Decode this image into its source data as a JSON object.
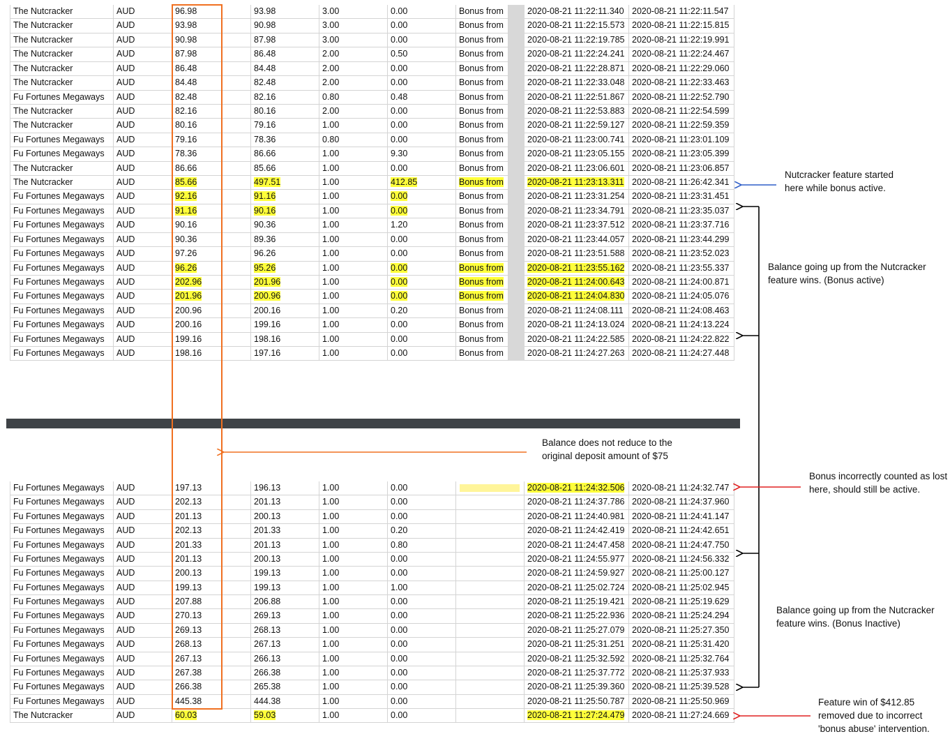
{
  "top_table": {
    "rows": [
      [
        "The Nutcracker",
        "AUD",
        "96.98",
        "93.98",
        "3.00",
        "0.00",
        "Bonus from",
        "2020-08-21 11:22:11.340",
        "2020-08-21 11:22:11.547"
      ],
      [
        "The Nutcracker",
        "AUD",
        "93.98",
        "90.98",
        "3.00",
        "0.00",
        "Bonus from",
        "2020-08-21 11:22:15.573",
        "2020-08-21 11:22:15.815"
      ],
      [
        "The Nutcracker",
        "AUD",
        "90.98",
        "87.98",
        "3.00",
        "0.00",
        "Bonus from",
        "2020-08-21 11:22:19.785",
        "2020-08-21 11:22:19.991"
      ],
      [
        "The Nutcracker",
        "AUD",
        "87.98",
        "86.48",
        "2.00",
        "0.50",
        "Bonus from",
        "2020-08-21 11:22:24.241",
        "2020-08-21 11:22:24.467"
      ],
      [
        "The Nutcracker",
        "AUD",
        "86.48",
        "84.48",
        "2.00",
        "0.00",
        "Bonus from",
        "2020-08-21 11:22:28.871",
        "2020-08-21 11:22:29.060"
      ],
      [
        "The Nutcracker",
        "AUD",
        "84.48",
        "82.48",
        "2.00",
        "0.00",
        "Bonus from",
        "2020-08-21 11:22:33.048",
        "2020-08-21 11:22:33.463"
      ],
      [
        "Fu Fortunes Megaways",
        "AUD",
        "82.48",
        "82.16",
        "0.80",
        "0.48",
        "Bonus from",
        "2020-08-21 11:22:51.867",
        "2020-08-21 11:22:52.790"
      ],
      [
        "The Nutcracker",
        "AUD",
        "82.16",
        "80.16",
        "2.00",
        "0.00",
        "Bonus from",
        "2020-08-21 11:22:53.883",
        "2020-08-21 11:22:54.599"
      ],
      [
        "The Nutcracker",
        "AUD",
        "80.16",
        "79.16",
        "1.00",
        "0.00",
        "Bonus from",
        "2020-08-21 11:22:59.127",
        "2020-08-21 11:22:59.359"
      ],
      [
        "Fu Fortunes Megaways",
        "AUD",
        "79.16",
        "78.36",
        "0.80",
        "0.00",
        "Bonus from",
        "2020-08-21 11:23:00.741",
        "2020-08-21 11:23:01.109"
      ],
      [
        "Fu Fortunes Megaways",
        "AUD",
        "78.36",
        "86.66",
        "1.00",
        "9.30",
        "Bonus from",
        "2020-08-21 11:23:05.155",
        "2020-08-21 11:23:05.399"
      ],
      [
        "The Nutcracker",
        "AUD",
        "86.66",
        "85.66",
        "1.00",
        "0.00",
        "Bonus from",
        "2020-08-21 11:23:06.601",
        "2020-08-21 11:23:06.857"
      ],
      [
        "The Nutcracker",
        "AUD",
        "85.66",
        "497.51",
        "1.00",
        "412.85",
        "Bonus from",
        "2020-08-21 11:23:13.311",
        "2020-08-21 11:26:42.341"
      ],
      [
        "Fu Fortunes Megaways",
        "AUD",
        "92.16",
        "91.16",
        "1.00",
        "0.00",
        "Bonus from",
        "2020-08-21 11:23:31.254",
        "2020-08-21 11:23:31.451"
      ],
      [
        "Fu Fortunes Megaways",
        "AUD",
        "91.16",
        "90.16",
        "1.00",
        "0.00",
        "Bonus from",
        "2020-08-21 11:23:34.791",
        "2020-08-21 11:23:35.037"
      ],
      [
        "Fu Fortunes Megaways",
        "AUD",
        "90.16",
        "90.36",
        "1.00",
        "1.20",
        "Bonus from",
        "2020-08-21 11:23:37.512",
        "2020-08-21 11:23:37.716"
      ],
      [
        "Fu Fortunes Megaways",
        "AUD",
        "90.36",
        "89.36",
        "1.00",
        "0.00",
        "Bonus from",
        "2020-08-21 11:23:44.057",
        "2020-08-21 11:23:44.299"
      ],
      [
        "Fu Fortunes Megaways",
        "AUD",
        "97.26",
        "96.26",
        "1.00",
        "0.00",
        "Bonus from",
        "2020-08-21 11:23:51.588",
        "2020-08-21 11:23:52.023"
      ],
      [
        "Fu Fortunes Megaways",
        "AUD",
        "96.26",
        "95.26",
        "1.00",
        "0.00",
        "Bonus from",
        "2020-08-21 11:23:55.162",
        "2020-08-21 11:23:55.337"
      ],
      [
        "Fu Fortunes Megaways",
        "AUD",
        "202.96",
        "201.96",
        "1.00",
        "0.00",
        "Bonus from",
        "2020-08-21 11:24:00.643",
        "2020-08-21 11:24:00.871"
      ],
      [
        "Fu Fortunes Megaways",
        "AUD",
        "201.96",
        "200.96",
        "1.00",
        "0.00",
        "Bonus from",
        "2020-08-21 11:24:04.830",
        "2020-08-21 11:24:05.076"
      ],
      [
        "Fu Fortunes Megaways",
        "AUD",
        "200.96",
        "200.16",
        "1.00",
        "0.20",
        "Bonus from",
        "2020-08-21 11:24:08.111",
        "2020-08-21 11:24:08.463"
      ],
      [
        "Fu Fortunes Megaways",
        "AUD",
        "200.16",
        "199.16",
        "1.00",
        "0.00",
        "Bonus from",
        "2020-08-21 11:24:13.024",
        "2020-08-21 11:24:13.224"
      ],
      [
        "Fu Fortunes Megaways",
        "AUD",
        "199.16",
        "198.16",
        "1.00",
        "0.00",
        "Bonus from",
        "2020-08-21 11:24:22.585",
        "2020-08-21 11:24:22.822"
      ],
      [
        "Fu Fortunes Megaways",
        "AUD",
        "198.16",
        "197.16",
        "1.00",
        "0.00",
        "Bonus from",
        "2020-08-21 11:24:27.263",
        "2020-08-21 11:24:27.448"
      ]
    ]
  },
  "bottom_table": {
    "rows": [
      [
        "Fu Fortunes Megaways",
        "AUD",
        "197.13",
        "196.13",
        "1.00",
        "0.00",
        "2020-08-21 11:24:32.506",
        "2020-08-21 11:24:32.747"
      ],
      [
        "Fu Fortunes Megaways",
        "AUD",
        "202.13",
        "201.13",
        "1.00",
        "0.00",
        "2020-08-21 11:24:37.786",
        "2020-08-21 11:24:37.960"
      ],
      [
        "Fu Fortunes Megaways",
        "AUD",
        "201.13",
        "200.13",
        "1.00",
        "0.00",
        "2020-08-21 11:24:40.981",
        "2020-08-21 11:24:41.147"
      ],
      [
        "Fu Fortunes Megaways",
        "AUD",
        "202.13",
        "201.33",
        "1.00",
        "0.20",
        "2020-08-21 11:24:42.419",
        "2020-08-21 11:24:42.651"
      ],
      [
        "Fu Fortunes Megaways",
        "AUD",
        "201.33",
        "201.13",
        "1.00",
        "0.80",
        "2020-08-21 11:24:47.458",
        "2020-08-21 11:24:47.750"
      ],
      [
        "Fu Fortunes Megaways",
        "AUD",
        "201.13",
        "200.13",
        "1.00",
        "0.00",
        "2020-08-21 11:24:55.977",
        "2020-08-21 11:24:56.332"
      ],
      [
        "Fu Fortunes Megaways",
        "AUD",
        "200.13",
        "199.13",
        "1.00",
        "0.00",
        "2020-08-21 11:24:59.927",
        "2020-08-21 11:25:00.127"
      ],
      [
        "Fu Fortunes Megaways",
        "AUD",
        "199.13",
        "199.13",
        "1.00",
        "1.00",
        "2020-08-21 11:25:02.724",
        "2020-08-21 11:25:02.945"
      ],
      [
        "Fu Fortunes Megaways",
        "AUD",
        "207.88",
        "206.88",
        "1.00",
        "0.00",
        "2020-08-21 11:25:19.421",
        "2020-08-21 11:25:19.629"
      ],
      [
        "Fu Fortunes Megaways",
        "AUD",
        "270.13",
        "269.13",
        "1.00",
        "0.00",
        "2020-08-21 11:25:22.936",
        "2020-08-21 11:25:24.294"
      ],
      [
        "Fu Fortunes Megaways",
        "AUD",
        "269.13",
        "268.13",
        "1.00",
        "0.00",
        "2020-08-21 11:25:27.079",
        "2020-08-21 11:25:27.350"
      ],
      [
        "Fu Fortunes Megaways",
        "AUD",
        "268.13",
        "267.13",
        "1.00",
        "0.00",
        "2020-08-21 11:25:31.251",
        "2020-08-21 11:25:31.420"
      ],
      [
        "Fu Fortunes Megaways",
        "AUD",
        "267.13",
        "266.13",
        "1.00",
        "0.00",
        "2020-08-21 11:25:32.592",
        "2020-08-21 11:25:32.764"
      ],
      [
        "Fu Fortunes Megaways",
        "AUD",
        "267.38",
        "266.38",
        "1.00",
        "0.00",
        "2020-08-21 11:25:37.772",
        "2020-08-21 11:25:37.933"
      ],
      [
        "Fu Fortunes Megaways",
        "AUD",
        "266.38",
        "265.38",
        "1.00",
        "0.00",
        "2020-08-21 11:25:39.360",
        "2020-08-21 11:25:39.528"
      ],
      [
        "Fu Fortunes Megaways",
        "AUD",
        "445.38",
        "444.38",
        "1.00",
        "0.00",
        "2020-08-21 11:25:50.787",
        "2020-08-21 11:25:50.969"
      ],
      [
        "The Nutcracker",
        "AUD",
        "60.03",
        "59.03",
        "1.00",
        "0.00",
        "2020-08-21 11:27:24.479",
        "2020-08-21 11:27:24.669"
      ]
    ]
  },
  "annotations": {
    "nutcracker_started": "Nutcracker feature started here while bonus active.",
    "bonus_active": "Balance going up from the Nutcracker feature wins. (Bonus active)",
    "no_reduce": "Balance does not reduce to the original deposit amount of $75",
    "incorrectly_lost": "Bonus incorrectly counted as lost here, should still be active.",
    "bonus_inactive": "Balance going up from the Nutcracker feature wins. (Bonus Inactive)",
    "feature_removed": "Feature win of $412.85 removed due to incorrect 'bonus abuse' intervention."
  }
}
